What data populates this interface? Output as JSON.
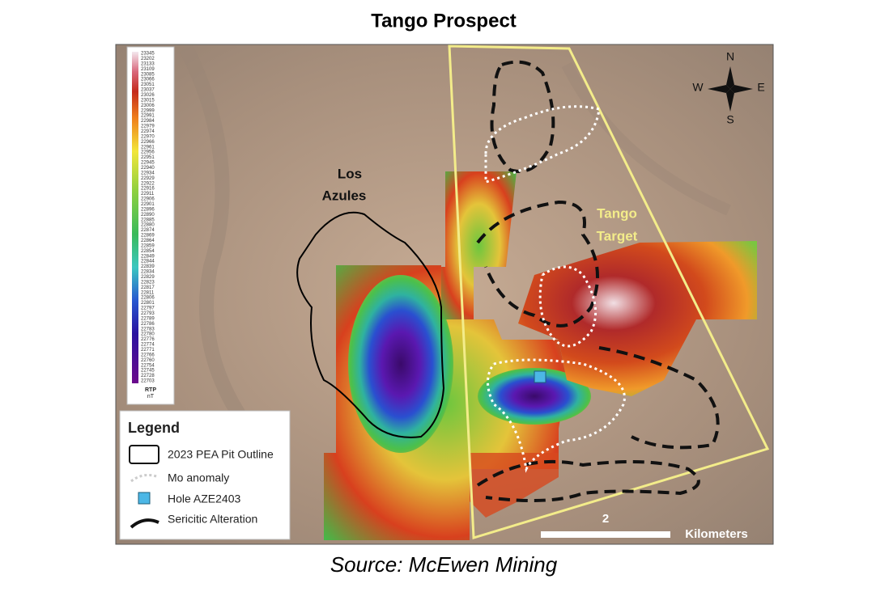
{
  "title": "Tango Prospect",
  "source": "Source: McEwen Mining",
  "map_labels": {
    "los_azules": [
      "Los",
      "Azules"
    ],
    "tango_target": [
      "Tango",
      "Target"
    ]
  },
  "compass": {
    "north": "N",
    "west": "W",
    "east": "E",
    "south": "S"
  },
  "scale_bar": {
    "value": 2,
    "unit": "Kilometers"
  },
  "color_scale": {
    "ticks": [
      23345,
      23202,
      23133,
      23109,
      23085,
      23066,
      23051,
      23037,
      23026,
      23015,
      23006,
      22999,
      22991,
      22984,
      22979,
      22974,
      22970,
      22966,
      22961,
      22956,
      22951,
      22945,
      22940,
      22934,
      22929,
      22922,
      22916,
      22911,
      22906,
      22901,
      22896,
      22890,
      22885,
      22880,
      22874,
      22869,
      22864,
      22859,
      22854,
      22849,
      22844,
      22839,
      22834,
      22829,
      22823,
      22817,
      22811,
      22806,
      22801,
      22797,
      22793,
      22789,
      22786,
      22783,
      22780,
      22776,
      22774,
      22771,
      22766,
      22760,
      22754,
      22745,
      22728,
      22703
    ],
    "title": "RTP",
    "unit": "nT"
  },
  "legend": {
    "title": "Legend",
    "items": [
      "2023 PEA Pit Outline",
      "Mo anomaly",
      "Hole AZE2403",
      "Sericitic Alteration"
    ]
  }
}
